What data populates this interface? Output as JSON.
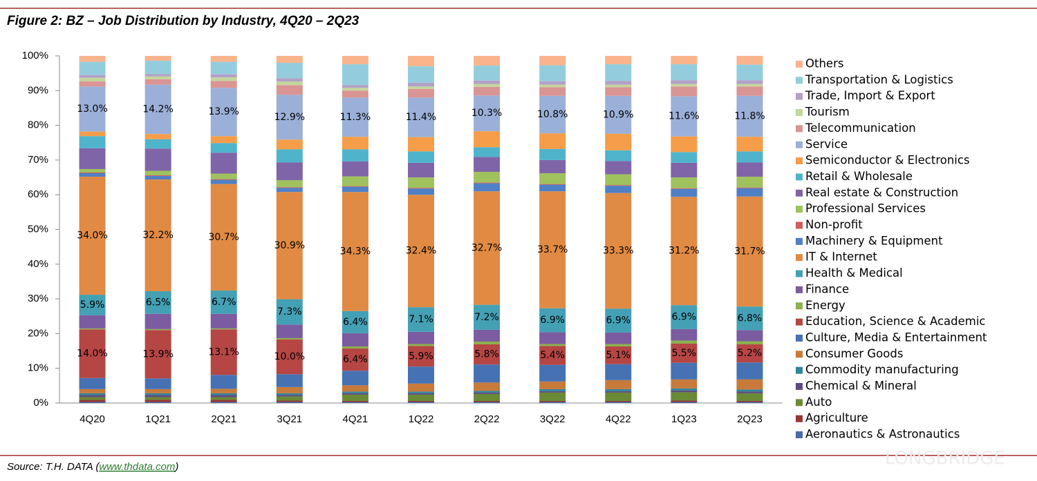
{
  "chart_data": {
    "type": "bar",
    "stacked": true,
    "title": "Figure 2: BZ – Job Distribution by Industry, 4Q20 – 2Q23",
    "categories": [
      "4Q20",
      "1Q21",
      "2Q21",
      "3Q21",
      "4Q21",
      "1Q22",
      "2Q22",
      "3Q22",
      "4Q22",
      "1Q23",
      "2Q23"
    ],
    "ylim": [
      0,
      100
    ],
    "yticks": [
      {
        "value": 0,
        "label": "0%"
      },
      {
        "value": 10,
        "label": "10%"
      },
      {
        "value": 20,
        "label": "20%"
      },
      {
        "value": 30,
        "label": "30%"
      },
      {
        "value": 40,
        "label": "40%"
      },
      {
        "value": 50,
        "label": "50%"
      },
      {
        "value": 60,
        "label": "60%"
      },
      {
        "value": 70,
        "label": "70%"
      },
      {
        "value": 80,
        "label": "80%"
      },
      {
        "value": 90,
        "label": "90%"
      },
      {
        "value": 100,
        "label": "100%"
      }
    ],
    "grid": false,
    "legend": "right",
    "series": [
      {
        "name": "Aeronautics & Astronautics",
        "color": "#4b6aa8",
        "values": [
          0.3,
          0.3,
          0.3,
          0.3,
          0.3,
          0.3,
          0.3,
          0.3,
          0.3,
          0.3,
          0.3
        ]
      },
      {
        "name": "Agriculture",
        "color": "#953735",
        "values": [
          0.6,
          0.6,
          0.6,
          0.4,
          0.3,
          0.3,
          0.3,
          0.3,
          0.3,
          0.4,
          0.3
        ]
      },
      {
        "name": "Auto",
        "color": "#6b8a36",
        "values": [
          0.8,
          0.8,
          0.8,
          1.2,
          1.8,
          1.8,
          2.0,
          2.4,
          2.4,
          2.4,
          2.2
        ]
      },
      {
        "name": "Chemical & Mineral",
        "color": "#5f4a80",
        "values": [
          0.6,
          0.6,
          0.6,
          0.4,
          0.4,
          0.4,
          0.4,
          0.4,
          0.4,
          0.5,
          0.5
        ]
      },
      {
        "name": "Commodity manufacturing",
        "color": "#31859c",
        "values": [
          0.5,
          0.5,
          0.5,
          0.5,
          0.5,
          0.5,
          0.5,
          0.6,
          0.6,
          0.6,
          0.6
        ]
      },
      {
        "name": "Consumer Goods",
        "color": "#c77a3a",
        "values": [
          1.2,
          1.2,
          1.3,
          1.8,
          1.8,
          2.3,
          2.4,
          2.2,
          2.6,
          2.6,
          2.9
        ]
      },
      {
        "name": "Culture, Media & Entertainment",
        "color": "#4672b4",
        "values": [
          3.2,
          3.1,
          4.0,
          3.7,
          4.2,
          4.9,
          5.2,
          4.8,
          4.6,
          4.8,
          4.9
        ]
      },
      {
        "name": "Education, Science & Academic",
        "color": "#b54644",
        "values": [
          14.0,
          13.9,
          13.1,
          10.0,
          6.4,
          5.9,
          5.8,
          5.4,
          5.1,
          5.5,
          5.2
        ],
        "value_labels": [
          "14.0%",
          "13.9%",
          "13.1%",
          "10.0%",
          "6.4%",
          "5.9%",
          "5.8%",
          "5.4%",
          "5.1%",
          "5.5%",
          "5.2%"
        ]
      },
      {
        "name": "Energy",
        "color": "#8eb04e",
        "values": [
          0.3,
          0.3,
          0.3,
          0.4,
          0.6,
          0.6,
          0.8,
          0.6,
          0.7,
          0.9,
          0.9
        ]
      },
      {
        "name": "Finance",
        "color": "#7b5ca0",
        "values": [
          3.8,
          4.4,
          4.2,
          3.9,
          3.8,
          3.5,
          3.4,
          3.4,
          3.3,
          3.3,
          3.2
        ]
      },
      {
        "name": "Health & Medical",
        "color": "#44a0b5",
        "values": [
          5.9,
          6.5,
          6.7,
          7.3,
          6.4,
          7.1,
          7.2,
          6.9,
          6.9,
          6.9,
          6.8
        ],
        "value_labels": [
          "5.9%",
          "6.5%",
          "6.7%",
          "7.3%",
          "6.4%",
          "7.1%",
          "7.2%",
          "6.9%",
          "6.9%",
          "6.9%",
          "6.8%"
        ]
      },
      {
        "name": "IT & Internet",
        "color": "#e08a44",
        "values": [
          34.0,
          32.2,
          30.7,
          30.9,
          34.3,
          32.4,
          32.7,
          33.7,
          33.3,
          31.2,
          31.7
        ],
        "value_labels": [
          "34.0%",
          "32.2%",
          "30.7%",
          "30.9%",
          "34.3%",
          "32.4%",
          "32.7%",
          "33.7%",
          "33.3%",
          "31.2%",
          "31.7%"
        ]
      },
      {
        "name": "Machinery & Equipment",
        "color": "#4f80c6",
        "values": [
          1.0,
          1.0,
          1.2,
          1.2,
          1.5,
          1.8,
          2.3,
          1.9,
          2.1,
          2.3,
          2.4
        ]
      },
      {
        "name": "Non-profit",
        "color": "#d25a57",
        "values": [
          0.2,
          0.2,
          0.2,
          0.2,
          0.2,
          0.2,
          0.2,
          0.2,
          0.2,
          0.2,
          0.2
        ]
      },
      {
        "name": "Professional Services",
        "color": "#9fc25e",
        "values": [
          1.0,
          1.3,
          1.6,
          2.0,
          2.8,
          3.0,
          3.1,
          3.1,
          3.1,
          3.1,
          3.1
        ]
      },
      {
        "name": "Real estate & Construction",
        "color": "#8064a8",
        "values": [
          6.0,
          6.4,
          6.0,
          5.1,
          4.3,
          4.2,
          4.3,
          3.8,
          3.8,
          4.2,
          4.1
        ]
      },
      {
        "name": "Retail & Wholesale",
        "color": "#4fb4cb",
        "values": [
          3.5,
          2.7,
          2.8,
          3.8,
          3.5,
          3.3,
          2.8,
          3.2,
          3.1,
          3.1,
          3.2
        ]
      },
      {
        "name": "Semiconductor & Electronics",
        "color": "#f59d48",
        "values": [
          1.3,
          1.5,
          2.0,
          2.8,
          3.6,
          4.1,
          4.6,
          4.5,
          4.8,
          4.5,
          4.2
        ]
      },
      {
        "name": "Service",
        "color": "#9bb0d8",
        "values": [
          13.0,
          14.2,
          13.9,
          12.9,
          11.3,
          11.4,
          10.3,
          10.8,
          10.9,
          11.6,
          11.8
        ],
        "value_labels": [
          "13.0%",
          "14.2%",
          "13.9%",
          "12.9%",
          "11.3%",
          "11.4%",
          "10.3%",
          "10.8%",
          "10.9%",
          "11.6%",
          "11.8%"
        ]
      },
      {
        "name": "Telecommunication",
        "color": "#d99593",
        "values": [
          1.5,
          1.6,
          2.0,
          2.8,
          2.0,
          2.5,
          2.5,
          2.5,
          2.5,
          2.8,
          2.7
        ]
      },
      {
        "name": "Tourism",
        "color": "#c3d69b",
        "values": [
          1.0,
          0.8,
          1.0,
          1.0,
          0.8,
          0.7,
          0.8,
          0.7,
          0.7,
          0.7,
          0.7
        ]
      },
      {
        "name": "Trade, Import & Export",
        "color": "#b2a1c7",
        "values": [
          0.8,
          0.7,
          0.9,
          1.0,
          0.8,
          1.1,
          1.0,
          1.0,
          1.1,
          1.1,
          1.1
        ]
      },
      {
        "name": "Transportation & Logistics",
        "color": "#93cddd",
        "values": [
          3.8,
          3.8,
          3.6,
          4.4,
          6.0,
          4.7,
          4.3,
          4.6,
          4.8,
          4.6,
          4.5
        ]
      },
      {
        "name": "Others",
        "color": "#fab48c",
        "values": [
          1.7,
          1.4,
          1.7,
          2.0,
          2.4,
          3.0,
          2.8,
          2.7,
          2.4,
          2.4,
          2.5
        ]
      }
    ]
  },
  "source": {
    "prefix": "Source: T.H. DATA (",
    "link": "www.thdata.com",
    "suffix": ")"
  },
  "watermark": "LONGBRIDGE"
}
